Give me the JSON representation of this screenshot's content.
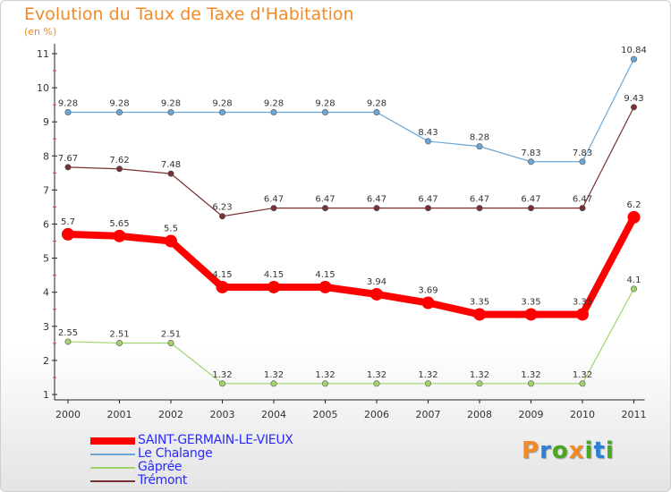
{
  "title": "Evolution du Taux de Taxe d'Habitation",
  "subtitle": "(en %)",
  "logo": {
    "letters": [
      "P",
      "r",
      "o",
      "x",
      "i",
      "t",
      "i"
    ],
    "colors": [
      "#f28a25",
      "#2a7fd8",
      "#4aa820",
      "#f28a25",
      "#4aa820",
      "#2a7fd8",
      "#4aa820"
    ]
  },
  "chart_data": {
    "type": "line",
    "x": [
      "2000",
      "2001",
      "2002",
      "2003",
      "2004",
      "2005",
      "2006",
      "2007",
      "2008",
      "2009",
      "2010",
      "2011"
    ],
    "ylim": [
      1,
      11
    ],
    "yticks": [
      "1",
      "2",
      "3",
      "4",
      "5",
      "6",
      "7",
      "8",
      "9",
      "10",
      "11"
    ],
    "grid": false,
    "legend_position": "bottom-left",
    "series": [
      {
        "name": "SAINT-GERMAIN-LE-VIEUX",
        "color": "#ff0000",
        "values": [
          5.7,
          5.65,
          5.5,
          4.15,
          4.15,
          4.15,
          3.94,
          3.69,
          3.35,
          3.35,
          3.35,
          6.2
        ],
        "labels": [
          "5.7",
          "5.65",
          "5.5",
          "4.15",
          "4.15",
          "4.15",
          "3.94",
          "3.69",
          "3.35",
          "3.35",
          "3.35",
          "6.2"
        ]
      },
      {
        "name": "Le Chalange",
        "color": "#6aa6d6",
        "values": [
          9.28,
          9.28,
          9.28,
          9.28,
          9.28,
          9.28,
          9.28,
          8.43,
          8.28,
          7.83,
          7.83,
          10.84
        ],
        "labels": [
          "9.28",
          "9.28",
          "9.28",
          "9.28",
          "9.28",
          "9.28",
          "9.28",
          "8.43",
          "8.28",
          "7.83",
          "7.83",
          "10.84"
        ]
      },
      {
        "name": "Gâprée",
        "color": "#9fd46a",
        "values": [
          2.55,
          2.51,
          2.51,
          1.32,
          1.32,
          1.32,
          1.32,
          1.32,
          1.32,
          1.32,
          1.32,
          4.1
        ],
        "labels": [
          "2.55",
          "2.51",
          "2.51",
          "1.32",
          "1.32",
          "1.32",
          "1.32",
          "1.32",
          "1.32",
          "1.32",
          "1.32",
          "4.1"
        ]
      },
      {
        "name": "Trémont",
        "color": "#7a3030",
        "values": [
          7.67,
          7.62,
          7.48,
          6.23,
          6.47,
          6.47,
          6.47,
          6.47,
          6.47,
          6.47,
          6.47,
          9.43
        ],
        "labels": [
          "7.67",
          "7.62",
          "7.48",
          "6.23",
          "6.47",
          "6.47",
          "6.47",
          "6.47",
          "6.47",
          "6.47",
          "6.47",
          "9.43"
        ]
      }
    ]
  }
}
